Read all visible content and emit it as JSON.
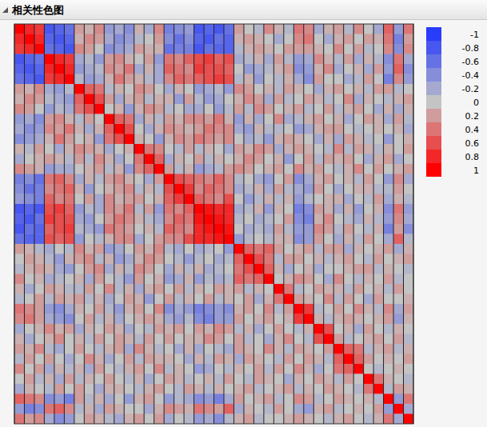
{
  "chart_data": {
    "type": "heatmap",
    "title": "相关性色图",
    "zlim": [
      -1,
      1
    ],
    "zticks": [
      -1,
      -0.8,
      -0.6,
      -0.4,
      -0.2,
      0,
      0.2,
      0.4,
      0.6,
      0.8,
      1
    ],
    "values": [
      [
        1
      ],
      [
        0.8,
        1
      ],
      [
        0.7,
        0.8,
        1
      ],
      [
        -0.8,
        -0.7,
        -0.6,
        1
      ],
      [
        -0.7,
        -0.8,
        -0.7,
        0.8,
        1
      ],
      [
        -0.6,
        -0.7,
        -0.8,
        0.7,
        0.8,
        1
      ],
      [
        0.2,
        0.1,
        0.3,
        -0.2,
        -0.3,
        -0.1,
        1
      ],
      [
        0.1,
        0.3,
        0.2,
        -0.1,
        -0.2,
        -0.3,
        0.5,
        1
      ],
      [
        0.3,
        0.2,
        0,
        -0.3,
        -0.1,
        -0.2,
        0.4,
        0.6,
        1
      ],
      [
        -0.3,
        -0.2,
        -0.4,
        0.2,
        0.3,
        0.1,
        -0.1,
        0.2,
        0,
        1
      ],
      [
        -0.2,
        -0.4,
        -0.3,
        0.3,
        0.2,
        0.4,
        0.1,
        -0.2,
        0.1,
        0.5,
        1
      ],
      [
        -0.4,
        -0.3,
        -0.2,
        0.1,
        0.4,
        0.2,
        0,
        0.1,
        -0.3,
        0.4,
        0.6,
        1
      ],
      [
        0.1,
        -0.1,
        0.2,
        0,
        -0.2,
        0.1,
        0.3,
        0.2,
        0.1,
        -0.2,
        0,
        0.1,
        1
      ],
      [
        -0.2,
        0,
        0.1,
        0.2,
        0.1,
        -0.1,
        0.2,
        -0.1,
        0.3,
        0.1,
        -0.2,
        0,
        0.4,
        1
      ],
      [
        0.3,
        0.2,
        0.1,
        -0.3,
        -0.2,
        -0.2,
        0,
        0.1,
        0.2,
        -0.1,
        0.1,
        -0.3,
        0.3,
        0.5,
        1
      ],
      [
        -0.5,
        -0.4,
        -0.6,
        0.4,
        0.5,
        0.3,
        -0.2,
        0.1,
        -0.1,
        0.2,
        0.3,
        0.1,
        0,
        -0.2,
        0.2,
        1
      ],
      [
        -0.4,
        -0.6,
        -0.5,
        0.3,
        0.4,
        0.5,
        0.1,
        -0.3,
        0,
        0.1,
        0.2,
        0.3,
        -0.1,
        0.1,
        -0.1,
        0.6,
        1
      ],
      [
        -0.3,
        -0.4,
        -0.5,
        0.5,
        0.3,
        0.4,
        0,
        0.2,
        -0.2,
        0.3,
        0.1,
        0.2,
        0.2,
        0,
        0.1,
        0.5,
        0.7,
        1
      ],
      [
        -0.8,
        -0.7,
        -0.8,
        0.6,
        0.7,
        0.5,
        -0.3,
        -0.1,
        -0.2,
        0.3,
        0.2,
        0.4,
        -0.1,
        0.2,
        -0.3,
        0.4,
        0.3,
        0.5,
        1
      ],
      [
        -0.7,
        -0.8,
        -0.6,
        0.7,
        0.6,
        0.6,
        -0.2,
        -0.3,
        0,
        0.2,
        0.4,
        0.3,
        0.1,
        -0.1,
        -0.2,
        0.3,
        0.5,
        0.4,
        0.9,
        1
      ],
      [
        -0.8,
        -0.6,
        -0.7,
        0.5,
        0.6,
        0.7,
        -0.1,
        -0.2,
        -0.3,
        0.4,
        0.3,
        0.2,
        0,
        0.1,
        -0.1,
        0.5,
        0.4,
        0.3,
        0.8,
        0.9,
        1
      ],
      [
        -0.6,
        -0.7,
        -0.7,
        0.6,
        0.5,
        0.6,
        -0.3,
        0,
        -0.1,
        0.1,
        0.3,
        0.3,
        -0.2,
        0,
        0.2,
        0.3,
        0.3,
        0.6,
        0.8,
        0.8,
        0.9,
        1
      ],
      [
        0.2,
        0.1,
        -0.1,
        -0.2,
        0,
        -0.1,
        0.3,
        0.1,
        0.2,
        -0.3,
        -0.2,
        0,
        0.2,
        0.1,
        0.3,
        -0.1,
        -0.2,
        0,
        -0.2,
        -0.1,
        0,
        -0.3,
        1
      ],
      [
        0,
        0.2,
        0.1,
        -0.1,
        -0.3,
        0.1,
        0.2,
        0.3,
        -0.1,
        0.1,
        -0.3,
        -0.2,
        0.1,
        0.3,
        0.2,
        0,
        -0.1,
        -0.3,
        -0.1,
        0,
        -0.2,
        -0.1,
        0.5,
        1
      ],
      [
        -0.1,
        0.1,
        0.2,
        0.1,
        -0.2,
        -0.3,
        0,
        0.2,
        0.3,
        -0.2,
        0.1,
        -0.1,
        0.3,
        0.2,
        0,
        -0.2,
        0.1,
        -0.1,
        0.1,
        -0.2,
        -0.1,
        0,
        0.4,
        0.6,
        1
      ],
      [
        0.3,
        0,
        0.1,
        -0.2,
        -0.1,
        0,
        0.1,
        -0.2,
        0.2,
        0,
        -0.1,
        -0.3,
        0.2,
        0,
        0.1,
        -0.3,
        -0.2,
        0.1,
        -0.3,
        -0.1,
        -0.2,
        -0.1,
        0.5,
        0.4,
        0.5,
        1
      ],
      [
        0.1,
        -0.2,
        0,
        0.2,
        0.1,
        -0.1,
        -0.1,
        0.2,
        0,
        0.3,
        -0.1,
        0.1,
        -0.2,
        0.1,
        0.2,
        0,
        0.2,
        -0.1,
        0.1,
        0,
        0.2,
        0.1,
        0.2,
        -0.1,
        0.1,
        0,
        1
      ],
      [
        -0.1,
        0,
        0.2,
        -0.1,
        0.2,
        0.1,
        0.2,
        -0.1,
        0.1,
        -0.2,
        0,
        0.2,
        0.1,
        -0.3,
        0,
        0.2,
        -0.1,
        0.1,
        0,
        0.2,
        -0.1,
        0.1,
        0,
        0.2,
        -0.2,
        0.1,
        0.4,
        1
      ],
      [
        0.4,
        0.3,
        0.2,
        -0.3,
        -0.4,
        -0.2,
        0.1,
        0,
        0.2,
        -0.1,
        -0.3,
        0.1,
        0.2,
        0,
        0.3,
        -0.4,
        -0.2,
        -0.3,
        -0.5,
        -0.4,
        -0.3,
        -0.4,
        0.1,
        0.2,
        0,
        0.3,
        -0.1,
        0.2,
        1
      ],
      [
        0.3,
        0.4,
        0.2,
        -0.2,
        -0.3,
        -0.4,
        0,
        0.2,
        -0.1,
        0.1,
        -0.2,
        0,
        0.1,
        0.2,
        0.1,
        -0.2,
        -0.3,
        -0.1,
        -0.4,
        -0.5,
        -0.3,
        -0.3,
        0.2,
        0,
        0.1,
        0.2,
        0,
        0.1,
        0.7,
        1
      ],
      [
        -0.2,
        0,
        0.1,
        0.3,
        0.1,
        0.2,
        -0.2,
        0.1,
        0,
        0.2,
        0.1,
        -0.2,
        0,
        -0.1,
        0.2,
        0.1,
        0.2,
        0,
        0.2,
        0.1,
        0.3,
        0.2,
        -0.1,
        0.1,
        -0.2,
        0,
        0.2,
        0,
        -0.1,
        0.1,
        1
      ],
      [
        0.1,
        -0.2,
        0,
        0.1,
        0.3,
        0,
        0.1,
        -0.1,
        0.2,
        0,
        0.2,
        0.1,
        -0.1,
        0.2,
        0,
        0.2,
        0,
        0.1,
        0.1,
        0.3,
        0.2,
        0,
        0.2,
        -0.1,
        0,
        -0.2,
        0.1,
        0.3,
        0,
        -0.1,
        0.6,
        1
      ],
      [
        0.2,
        0.1,
        0.3,
        -0.1,
        -0.2,
        0,
        0.2,
        0,
        -0.1,
        0.1,
        0.2,
        -0.2,
        0.3,
        0.1,
        -0.1,
        0,
        -0.2,
        0.1,
        -0.2,
        0,
        -0.1,
        -0.2,
        0.2,
        0.1,
        0,
        0.3,
        0.1,
        -0.1,
        0.2,
        0.1,
        0,
        0.2,
        1
      ],
      [
        -0.1,
        0.2,
        0,
        0.2,
        0,
        -0.2,
        0,
        0.3,
        0.1,
        -0.2,
        0,
        0.2,
        -0.1,
        0.2,
        0.1,
        0.1,
        0,
        -0.2,
        0.1,
        -0.1,
        0.2,
        0.1,
        -0.2,
        0.2,
        0.1,
        0,
        -0.1,
        0.2,
        0,
        0.2,
        0.1,
        -0.1,
        0.5,
        1
      ],
      [
        0.3,
        0,
        0.2,
        -0.2,
        0.1,
        -0.1,
        0.1,
        -0.2,
        0.2,
        0,
        -0.1,
        0.1,
        0.2,
        0,
        0.3,
        -0.1,
        0.1,
        0,
        -0.3,
        -0.2,
        0,
        -0.1,
        0.1,
        0,
        0.2,
        -0.1,
        0.2,
        0,
        0.3,
        0.1,
        -0.2,
        0,
        0.4,
        0.5,
        1
      ],
      [
        0,
        0.2,
        -0.1,
        0.1,
        -0.2,
        0.2,
        -0.1,
        0.1,
        0,
        0.2,
        0,
        -0.1,
        0.1,
        -0.2,
        0,
        0.2,
        0.1,
        -0.1,
        0,
        0.1,
        -0.1,
        0.2,
        0,
        -0.1,
        0.2,
        0.1,
        0,
        -0.2,
        0.1,
        0,
        0.2,
        0.1,
        -0.1,
        0.2,
        0,
        1
      ],
      [
        -0.2,
        0.1,
        0,
        -0.1,
        0.2,
        0,
        0.2,
        0,
        -0.2,
        0.1,
        0.1,
        0,
        -0.1,
        0.1,
        0.2,
        0,
        -0.1,
        0.2,
        0.1,
        -0.1,
        0.1,
        0,
        0.1,
        0.2,
        -0.1,
        0,
        0.1,
        0.2,
        -0.1,
        0.1,
        0,
        0.2,
        0.1,
        0,
        -0.1,
        0.4,
        1
      ],
      [
        0.5,
        0.4,
        0.3,
        -0.4,
        -0.3,
        -0.5,
        0.2,
        -0.1,
        0.1,
        -0.2,
        0,
        -0.3,
        0.1,
        0.2,
        0,
        -0.3,
        -0.1,
        -0.2,
        -0.4,
        -0.3,
        -0.5,
        -0.2,
        0.2,
        0,
        0.1,
        0.2,
        -0.1,
        0,
        0.3,
        0.2,
        -0.1,
        0,
        0.2,
        0.1,
        0,
        0.1,
        -0.1,
        1
      ],
      [
        -0.3,
        -0.5,
        -0.4,
        0.4,
        0.5,
        0.3,
        -0.1,
        0.1,
        -0.2,
        0.2,
        0.1,
        0,
        0,
        -0.2,
        0.1,
        0.3,
        0.2,
        0.1,
        0.4,
        0.3,
        0.2,
        0.5,
        -0.2,
        0.1,
        0,
        -0.1,
        0.2,
        0,
        -0.2,
        -0.3,
        0.1,
        0.2,
        -0.1,
        0,
        0.1,
        0,
        0.2,
        -0.3,
        1
      ],
      [
        0.4,
        0.2,
        0.3,
        -0.2,
        -0.4,
        -0.3,
        0,
        0.2,
        0.1,
        -0.1,
        -0.2,
        0.1,
        0.2,
        0,
        0.2,
        -0.2,
        0,
        -0.1,
        -0.3,
        -0.2,
        -0.4,
        -0.1,
        0.1,
        0.2,
        -0.1,
        0,
        0,
        0.1,
        0.2,
        0.1,
        0,
        -0.1,
        0.1,
        0.2,
        0,
        -0.1,
        0.1,
        0.4,
        -0.2,
        1
      ]
    ]
  }
}
